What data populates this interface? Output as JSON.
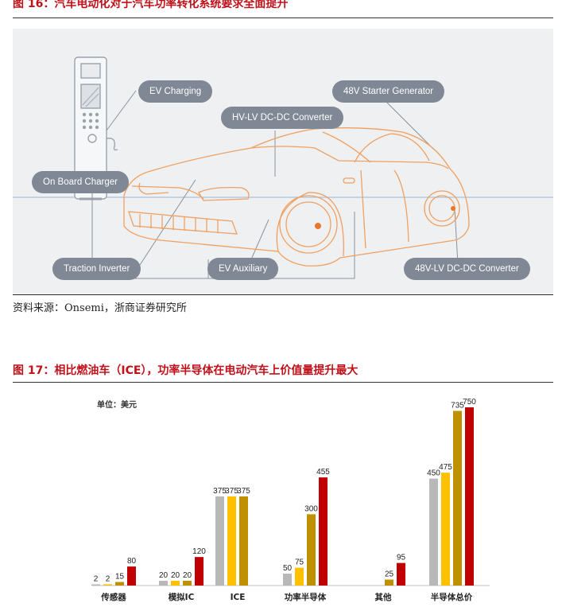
{
  "figure16": {
    "title": "图 16：汽车电动化对于汽车功率转化系统要求全面提升",
    "labels": {
      "ev_charging": "EV Charging",
      "starter_generator": "48V Starter Generator",
      "hv_lv": "HV-LV DC-DC Converter",
      "onboard_charger": "On Board Charger",
      "traction_inverter": "Traction Inverter",
      "ev_auxiliary": "EV Auxiliary",
      "lv_converter": "48V-LV DC-DC Converter"
    },
    "source": "资料来源：Onsemi，浙商证券研究所",
    "colors": {
      "car_outline": "#f0a060",
      "accent": "#e8762e",
      "pill": "#7f8894",
      "lines": "#8a939e"
    }
  },
  "figure17": {
    "title": "图 17：相比燃油车（ICE），功率半导体在电动汽车上价值量提升最大",
    "unit_label": "单位：美元"
  },
  "chart_data": {
    "type": "bar",
    "categories": [
      "传感器",
      "模拟IC",
      "ICE",
      "功率半导体",
      "其他",
      "半导体总价"
    ],
    "series": [
      {
        "values": [
          2,
          20,
          375,
          50,
          null,
          450
        ],
        "color": "#b8b8b8"
      },
      {
        "values": [
          2,
          20,
          375,
          75,
          null,
          475
        ],
        "color": "#ffc000"
      },
      {
        "values": [
          15,
          20,
          375,
          300,
          25,
          735
        ],
        "color": "#bf9000"
      },
      {
        "values": [
          80,
          120,
          null,
          455,
          95,
          750
        ],
        "color": "#c00000"
      }
    ],
    "data_labels": [
      [
        "2",
        "20",
        "375",
        "50",
        "",
        "450"
      ],
      [
        "2",
        "20",
        "375",
        "75",
        "",
        "475"
      ],
      [
        "15",
        "20",
        "375",
        "300",
        "25",
        "735"
      ],
      [
        "80",
        "120",
        "",
        "455",
        "95",
        "750"
      ]
    ],
    "ylim": [
      0,
      750
    ],
    "grid": false,
    "legend": "none"
  }
}
